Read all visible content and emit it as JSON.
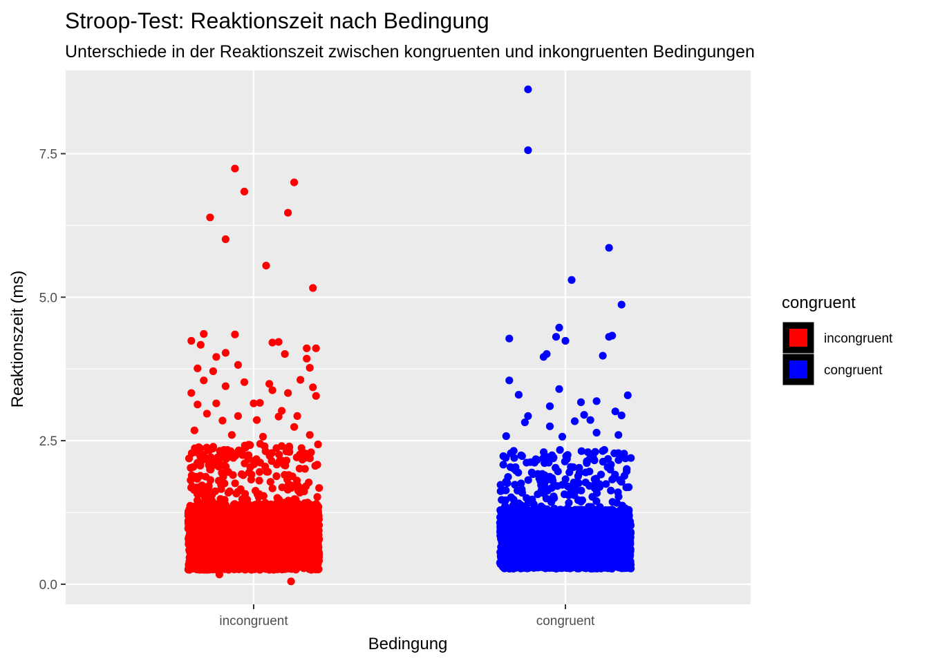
{
  "chart_data": {
    "type": "scatter",
    "title": "Stroop-Test: Reaktionszeit nach Bedingung",
    "subtitle": "Unterschiede in der Reaktionszeit zwischen kongruenten und inkongruenten Bedingungen",
    "xlabel": "Bedingung",
    "ylabel": "Reaktionszeit (ms)",
    "categories": [
      "incongruent",
      "congruent"
    ],
    "y_ticks": [
      0.0,
      2.5,
      5.0,
      7.5
    ],
    "y_tick_labels": [
      "0.0",
      "2.5",
      "5.0",
      "7.5"
    ],
    "ylim": [
      -0.35,
      8.95
    ],
    "grid": true,
    "legend": {
      "title": "congruent",
      "position": "right",
      "entries": [
        {
          "label": "incongruent",
          "color": "#ff0000"
        },
        {
          "label": "congruent",
          "color": "#0000ff"
        }
      ]
    },
    "series": [
      {
        "name": "incongruent",
        "category": "incongruent",
        "color": "#ff0000",
        "points": [
          [
            -0.06,
            7.24
          ],
          [
            -0.03,
            6.84
          ],
          [
            0.13,
            7.0
          ],
          [
            -0.14,
            6.39
          ],
          [
            0.11,
            6.47
          ],
          [
            -0.09,
            6.01
          ],
          [
            0.04,
            5.55
          ],
          [
            0.19,
            5.16
          ],
          [
            -0.2,
            4.24
          ],
          [
            -0.16,
            4.36
          ],
          [
            -0.06,
            4.35
          ],
          [
            0.08,
            4.22
          ],
          [
            0.1,
            4.01
          ],
          [
            0.17,
            4.11
          ],
          [
            0.2,
            4.11
          ],
          [
            -0.17,
            4.17
          ],
          [
            -0.09,
            4.03
          ],
          [
            -0.05,
            3.82
          ],
          [
            0.06,
            4.21
          ],
          [
            -0.12,
            3.96
          ],
          [
            0.17,
            3.93
          ],
          [
            -0.18,
            3.76
          ],
          [
            -0.2,
            3.33
          ],
          [
            -0.16,
            3.55
          ],
          [
            -0.13,
            3.71
          ],
          [
            -0.03,
            3.52
          ],
          [
            0.05,
            3.49
          ],
          [
            0.15,
            3.56
          ],
          [
            0.19,
            3.43
          ],
          [
            0.2,
            3.28
          ],
          [
            -0.18,
            3.13
          ],
          [
            -0.12,
            3.15
          ],
          [
            0.0,
            3.15
          ],
          [
            0.06,
            3.38
          ],
          [
            0.11,
            3.33
          ],
          [
            0.18,
            3.77
          ],
          [
            -0.09,
            3.45
          ],
          [
            0.02,
            3.16
          ],
          [
            0.09,
            3.02
          ],
          [
            -0.15,
            2.97
          ],
          [
            -0.1,
            2.85
          ],
          [
            -0.05,
            2.93
          ],
          [
            0.01,
            2.86
          ],
          [
            0.08,
            2.92
          ],
          [
            0.14,
            2.93
          ],
          [
            -0.19,
            2.68
          ],
          [
            0.13,
            2.74
          ],
          [
            0.18,
            2.6
          ],
          [
            -0.07,
            2.6
          ],
          [
            0.03,
            2.57
          ],
          [
            0.12,
            0.05
          ],
          [
            -0.11,
            0.17
          ]
        ],
        "dense_cloud": {
          "count": 2600,
          "y_min": 0.25,
          "y_mode": 0.85,
          "y_max": 2.45,
          "x_jitter": 0.21
        }
      },
      {
        "name": "congruent",
        "category": "congruent",
        "color": "#0000ff",
        "points": [
          [
            -0.12,
            8.62
          ],
          [
            -0.12,
            7.56
          ],
          [
            0.14,
            5.86
          ],
          [
            0.02,
            5.3
          ],
          [
            0.18,
            4.87
          ],
          [
            -0.18,
            4.28
          ],
          [
            -0.03,
            4.31
          ],
          [
            -0.02,
            4.47
          ],
          [
            0.0,
            4.24
          ],
          [
            0.15,
            4.33
          ],
          [
            0.14,
            4.31
          ],
          [
            -0.07,
            3.96
          ],
          [
            -0.06,
            4.01
          ],
          [
            0.12,
            3.98
          ],
          [
            -0.18,
            3.55
          ],
          [
            -0.15,
            3.3
          ],
          [
            -0.02,
            3.4
          ],
          [
            0.05,
            3.17
          ],
          [
            0.1,
            3.19
          ],
          [
            0.2,
            3.29
          ],
          [
            -0.12,
            2.93
          ],
          [
            -0.05,
            3.1
          ],
          [
            0.03,
            2.84
          ],
          [
            0.16,
            3.01
          ],
          [
            0.18,
            2.94
          ],
          [
            -0.13,
            2.82
          ],
          [
            0.08,
            2.86
          ],
          [
            0.1,
            2.64
          ],
          [
            -0.01,
            2.57
          ],
          [
            -0.19,
            2.58
          ],
          [
            0.17,
            2.6
          ],
          [
            -0.05,
            2.75
          ],
          [
            0.06,
            2.95
          ]
        ],
        "dense_cloud": {
          "count": 2600,
          "y_min": 0.27,
          "y_mode": 0.75,
          "y_max": 2.35,
          "x_jitter": 0.21
        }
      }
    ]
  }
}
